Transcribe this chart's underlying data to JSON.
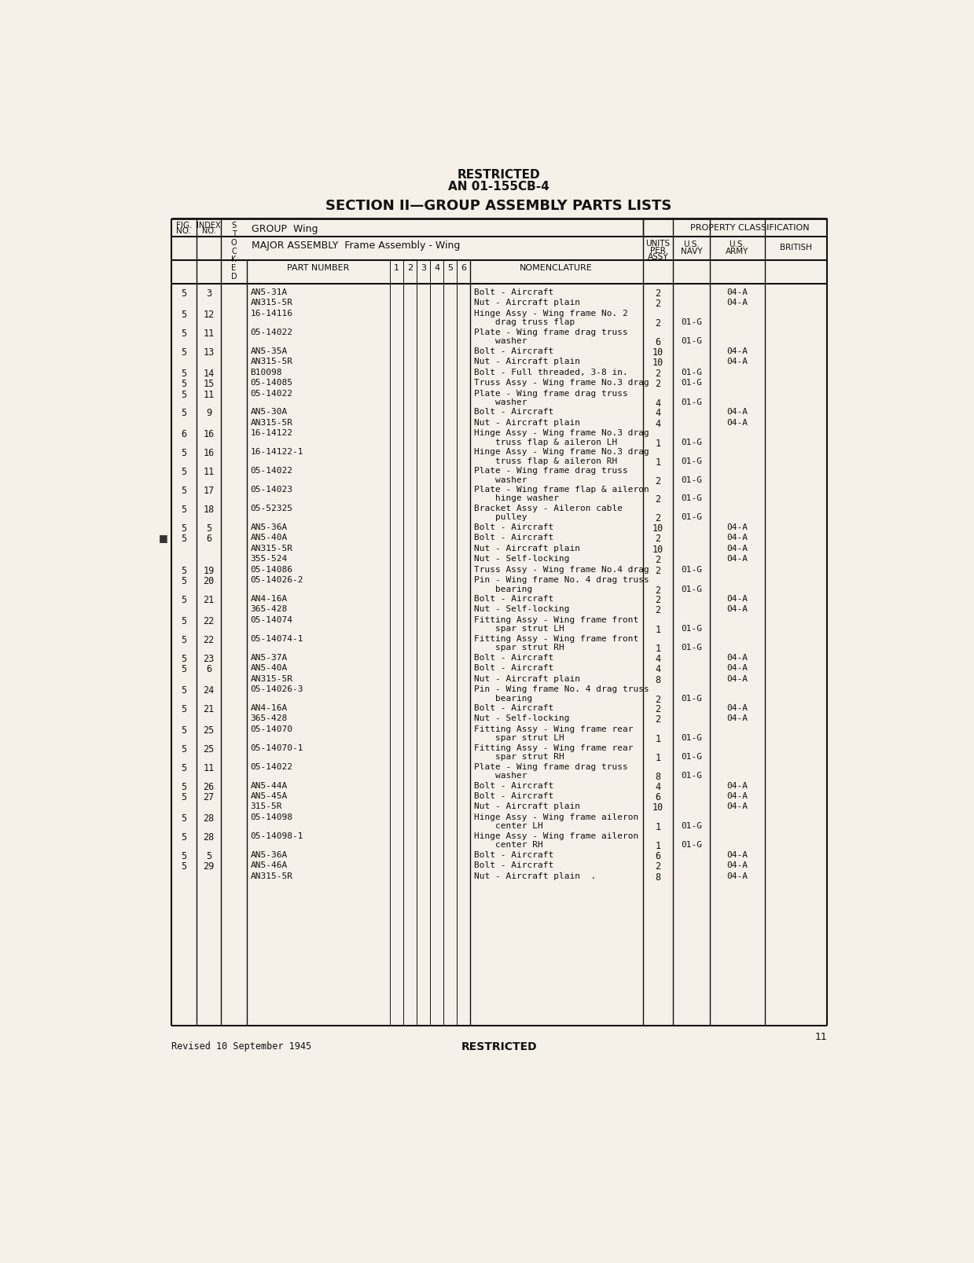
{
  "page_title1": "RESTRICTED",
  "page_title2": "AN 01-155CB-4",
  "page_title3": "SECTION II—GROUP ASSEMBLY PARTS LISTS",
  "rows": [
    {
      "fig": "5",
      "idx": "3",
      "part": "AN5-31A",
      "nom1": "Bolt - Aircraft",
      "nom2": "",
      "units": "2",
      "army": "04-A",
      "navy": "",
      "british": ""
    },
    {
      "fig": "",
      "idx": "",
      "part": "AN315-5R",
      "nom1": "Nut - Aircraft plain",
      "nom2": "",
      "units": "2",
      "army": "04-A",
      "navy": "",
      "british": ""
    },
    {
      "fig": "5",
      "idx": "12",
      "part": "16-14116",
      "nom1": "Hinge Assy - Wing frame No. 2",
      "nom2": "    drag truss flap",
      "units": "2",
      "army": "",
      "navy": "01-G",
      "british": ""
    },
    {
      "fig": "5",
      "idx": "11",
      "part": "05-14022",
      "nom1": "Plate - Wing frame drag truss",
      "nom2": "    washer",
      "units": "6",
      "army": "",
      "navy": "01-G",
      "british": ""
    },
    {
      "fig": "5",
      "idx": "13",
      "part": "AN5-35A",
      "nom1": "Bolt - Aircraft",
      "nom2": "",
      "units": "10",
      "army": "04-A",
      "navy": "",
      "british": ""
    },
    {
      "fig": "",
      "idx": "",
      "part": "AN315-5R",
      "nom1": "Nut - Aircraft plain",
      "nom2": "",
      "units": "10",
      "army": "04-A",
      "navy": "",
      "british": ""
    },
    {
      "fig": "5",
      "idx": "14",
      "part": "B10098",
      "nom1": "Bolt - Full threaded, 3-8 in.",
      "nom2": "",
      "units": "2",
      "army": "",
      "navy": "01-G",
      "british": ""
    },
    {
      "fig": "5",
      "idx": "15",
      "part": "05-14085",
      "nom1": "Truss Assy - Wing frame No.3 drag",
      "nom2": "",
      "units": "2",
      "army": "",
      "navy": "01-G",
      "british": ""
    },
    {
      "fig": "5",
      "idx": "11",
      "part": "05-14022",
      "nom1": "Plate - Wing frame drag truss",
      "nom2": "    washer",
      "units": "4",
      "army": "",
      "navy": "01-G",
      "british": ""
    },
    {
      "fig": "5",
      "idx": "9",
      "part": "AN5-30A",
      "nom1": "Bolt - Aircraft",
      "nom2": "",
      "units": "4",
      "army": "04-A",
      "navy": "",
      "british": ""
    },
    {
      "fig": "",
      "idx": "",
      "part": "AN315-5R",
      "nom1": "Nut - Aircraft plain",
      "nom2": "",
      "units": "4",
      "army": "04-A",
      "navy": "",
      "british": ""
    },
    {
      "fig": "6",
      "idx": "16",
      "part": "16-14122",
      "nom1": "Hinge Assy - Wing frame No.3 drag",
      "nom2": "    truss flap & aileron LH",
      "units": "1",
      "army": "",
      "navy": "01-G",
      "british": ""
    },
    {
      "fig": "5",
      "idx": "16",
      "part": "16-14122-1",
      "nom1": "Hinge Assy - Wing frame No.3 drag",
      "nom2": "    truss flap & aileron RH",
      "units": "1",
      "army": "",
      "navy": "01-G",
      "british": ""
    },
    {
      "fig": "5",
      "idx": "11",
      "part": "05-14022",
      "nom1": "Plate - Wing frame drag truss",
      "nom2": "    washer",
      "units": "2",
      "army": "",
      "navy": "01-G",
      "british": ""
    },
    {
      "fig": "5",
      "idx": "17",
      "part": "05-14023",
      "nom1": "Plate - Wing frame flap & aileron",
      "nom2": "    hinge washer",
      "units": "2",
      "army": "",
      "navy": "01-G",
      "british": ""
    },
    {
      "fig": "5",
      "idx": "18",
      "part": "05-52325",
      "nom1": "Bracket Assy - Aileron cable",
      "nom2": "    pulley",
      "units": "2",
      "army": "",
      "navy": "01-G",
      "british": ""
    },
    {
      "fig": "5",
      "idx": "5",
      "part": "AN5-36A",
      "nom1": "Bolt - Aircraft",
      "nom2": "",
      "units": "10",
      "army": "04-A",
      "navy": "",
      "british": ""
    },
    {
      "fig": "5",
      "idx": "6",
      "part": "AN5-40A",
      "nom1": "Bolt - Aircraft",
      "nom2": "",
      "units": "2",
      "army": "04-A",
      "navy": "",
      "british": ""
    },
    {
      "fig": "",
      "idx": "",
      "part": "AN315-5R",
      "nom1": "Nut - Aircraft plain",
      "nom2": "",
      "units": "10",
      "army": "04-A",
      "navy": "",
      "british": ""
    },
    {
      "fig": "",
      "idx": "",
      "part": "355-524",
      "nom1": "Nut - Self-locking",
      "nom2": "",
      "units": "2",
      "army": "04-A",
      "navy": "",
      "british": ""
    },
    {
      "fig": "5",
      "idx": "19",
      "part": "05-14086",
      "nom1": "Truss Assy - Wing frame No.4 drag",
      "nom2": "",
      "units": "2",
      "army": "",
      "navy": "01-G",
      "british": ""
    },
    {
      "fig": "5",
      "idx": "20",
      "part": "05-14026-2",
      "nom1": "Pin - Wing frame No. 4 drag truss",
      "nom2": "    bearing",
      "units": "2",
      "army": "",
      "navy": "01-G",
      "british": ""
    },
    {
      "fig": "5",
      "idx": "21",
      "part": "AN4-16A",
      "nom1": "Bolt - Aircraft",
      "nom2": "",
      "units": "2",
      "army": "04-A",
      "navy": "",
      "british": ""
    },
    {
      "fig": "",
      "idx": "",
      "part": "365-428",
      "nom1": "Nut - Self-locking",
      "nom2": "",
      "units": "2",
      "army": "04-A",
      "navy": "",
      "british": ""
    },
    {
      "fig": "5",
      "idx": "22",
      "part": "05-14074",
      "nom1": "Fitting Assy - Wing frame front",
      "nom2": "    spar strut LH",
      "units": "1",
      "army": "",
      "navy": "01-G",
      "british": ""
    },
    {
      "fig": "5",
      "idx": "22",
      "part": "05-14074-1",
      "nom1": "Fitting Assy - Wing frame front",
      "nom2": "    spar strut RH",
      "units": "1",
      "army": "",
      "navy": "01-G",
      "british": ""
    },
    {
      "fig": "5",
      "idx": "23",
      "part": "AN5-37A",
      "nom1": "Bolt - Aircraft",
      "nom2": "",
      "units": "4",
      "army": "04-A",
      "navy": "",
      "british": ""
    },
    {
      "fig": "5",
      "idx": "6",
      "part": "AN5-40A",
      "nom1": "Bolt - Aircraft",
      "nom2": "",
      "units": "4",
      "army": "04-A",
      "navy": "",
      "british": ""
    },
    {
      "fig": "",
      "idx": "",
      "part": "AN315-5R",
      "nom1": "Nut - Aircraft plain",
      "nom2": "",
      "units": "8",
      "army": "04-A",
      "navy": "",
      "british": ""
    },
    {
      "fig": "5",
      "idx": "24",
      "part": "05-14026-3",
      "nom1": "Pin - Wing frame No. 4 drag truss",
      "nom2": "    bearing",
      "units": "2",
      "army": "",
      "navy": "01-G",
      "british": ""
    },
    {
      "fig": "5",
      "idx": "21",
      "part": "AN4-16A",
      "nom1": "Bolt - Aircraft",
      "nom2": "",
      "units": "2",
      "army": "04-A",
      "navy": "",
      "british": ""
    },
    {
      "fig": "",
      "idx": "",
      "part": "365-428",
      "nom1": "Nut - Self-locking",
      "nom2": "",
      "units": "2",
      "army": "04-A",
      "navy": "",
      "british": ""
    },
    {
      "fig": "5",
      "idx": "25",
      "part": "05-14070",
      "nom1": "Fitting Assy - Wing frame rear",
      "nom2": "    spar strut LH",
      "units": "1",
      "army": "",
      "navy": "01-G",
      "british": ""
    },
    {
      "fig": "5",
      "idx": "25",
      "part": "05-14070-1",
      "nom1": "Fitting Assy - Wing frame rear",
      "nom2": "    spar strut RH",
      "units": "1",
      "army": "",
      "navy": "01-G",
      "british": ""
    },
    {
      "fig": "5",
      "idx": "11",
      "part": "05-14022",
      "nom1": "Plate - Wing frame drag truss",
      "nom2": "    washer",
      "units": "8",
      "army": "",
      "navy": "01-G",
      "british": ""
    },
    {
      "fig": "5",
      "idx": "26",
      "part": "AN5-44A",
      "nom1": "Bolt - Aircraft",
      "nom2": "",
      "units": "4",
      "army": "04-A",
      "navy": "",
      "british": ""
    },
    {
      "fig": "5",
      "idx": "27",
      "part": "AN5-45A",
      "nom1": "Bolt - Aircraft",
      "nom2": "",
      "units": "6",
      "army": "04-A",
      "navy": "",
      "british": ""
    },
    {
      "fig": "",
      "idx": "",
      "part": "315-5R",
      "nom1": "Nut - Aircraft plain",
      "nom2": "",
      "units": "10",
      "army": "04-A",
      "navy": "",
      "british": ""
    },
    {
      "fig": "5",
      "idx": "28",
      "part": "05-14098",
      "nom1": "Hinge Assy - Wing frame aileron",
      "nom2": "    center LH",
      "units": "1",
      "army": "",
      "navy": "01-G",
      "british": ""
    },
    {
      "fig": "5",
      "idx": "28",
      "part": "05-14098-1",
      "nom1": "Hinge Assy - Wing frame aileron",
      "nom2": "    center RH",
      "units": "1",
      "army": "",
      "navy": "01-G",
      "british": ""
    },
    {
      "fig": "5",
      "idx": "5",
      "part": "AN5-36A",
      "nom1": "Bolt - Aircraft",
      "nom2": "",
      "units": "6",
      "army": "04-A",
      "navy": "",
      "british": ""
    },
    {
      "fig": "5",
      "idx": "29",
      "part": "AN5-46A",
      "nom1": "Bolt - Aircraft",
      "nom2": "",
      "units": "2",
      "army": "04-A",
      "navy": "",
      "british": ""
    },
    {
      "fig": "",
      "idx": "",
      "part": "AN315-5R",
      "nom1": "Nut - Aircraft plain  .",
      "nom2": "",
      "units": "8",
      "army": "04-A",
      "navy": "",
      "british": ""
    }
  ],
  "footer_left": "Revised 10 September 1945",
  "footer_center": "RESTRICTED",
  "page_number": "11",
  "bg_color": "#f5f0e8",
  "text_color": "#111111"
}
